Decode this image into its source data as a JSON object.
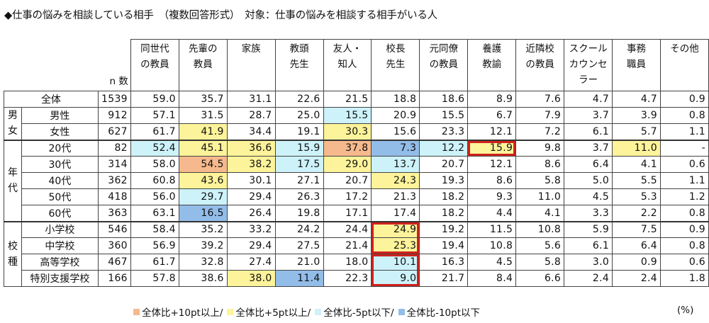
{
  "title": "◆仕事の悩みを相談している相手　（複数回答形式）　対象：仕事の悩みを相談する相手がいる人",
  "n_label": "n 数",
  "columns": [
    "同世代\nの教員",
    "先輩の\n教員",
    "家族",
    "教頭\n先生",
    "友人・\n知人",
    "校長\n先生",
    "元同僚\nの教員",
    "養護\n教諭",
    "近隣校\nの教員",
    "スクール\nカウンセ\nラー",
    "事務\n職員",
    "その他"
  ],
  "groups": [
    {
      "label": "",
      "rows": [
        {
          "label": "全体",
          "n": "1539",
          "values": [
            "59.0",
            "35.7",
            "31.1",
            "22.6",
            "21.5",
            "18.8",
            "18.6",
            "8.9",
            "7.6",
            "4.7",
            "4.7",
            "0.9"
          ],
          "colors": [
            "",
            "",
            "",
            "",
            "",
            "",
            "",
            "",
            "",
            "",
            "",
            ""
          ]
        }
      ]
    },
    {
      "label": "男\n女",
      "rows": [
        {
          "label": "男性",
          "n": "912",
          "values": [
            "57.1",
            "31.5",
            "28.7",
            "25.0",
            "15.5",
            "20.9",
            "15.5",
            "6.7",
            "7.9",
            "3.7",
            "3.9",
            "0.8"
          ],
          "colors": [
            "",
            "",
            "",
            "",
            "lb",
            "",
            "",
            "",
            "",
            "",
            "",
            ""
          ]
        },
        {
          "label": "女性",
          "n": "627",
          "values": [
            "61.7",
            "41.9",
            "34.4",
            "19.1",
            "30.3",
            "15.6",
            "23.3",
            "12.1",
            "7.2",
            "6.1",
            "5.7",
            "1.1"
          ],
          "colors": [
            "",
            "y",
            "",
            "",
            "y",
            "",
            "",
            "",
            "",
            "",
            "",
            ""
          ]
        }
      ]
    },
    {
      "label": "年\n代",
      "rows": [
        {
          "label": "20代",
          "n": "82",
          "values": [
            "52.4",
            "45.1",
            "36.6",
            "15.9",
            "37.8",
            "7.3",
            "12.2",
            "15.9",
            "9.8",
            "3.7",
            "11.0",
            "-"
          ],
          "colors": [
            "lb",
            "y",
            "y",
            "lb",
            "o",
            "b",
            "lb",
            "y",
            "",
            "",
            "y",
            ""
          ]
        },
        {
          "label": "30代",
          "n": "314",
          "values": [
            "58.0",
            "54.5",
            "38.2",
            "17.5",
            "29.0",
            "13.7",
            "20.7",
            "12.1",
            "8.6",
            "6.4",
            "4.1",
            "0.6"
          ],
          "colors": [
            "",
            "o",
            "y",
            "lb",
            "y",
            "lb",
            "",
            "",
            "",
            "",
            "",
            ""
          ]
        },
        {
          "label": "40代",
          "n": "362",
          "values": [
            "60.8",
            "43.6",
            "30.1",
            "27.1",
            "20.7",
            "24.3",
            "19.3",
            "8.6",
            "5.8",
            "5.0",
            "5.5",
            "1.1"
          ],
          "colors": [
            "",
            "y",
            "",
            "",
            "",
            "y",
            "",
            "",
            "",
            "",
            "",
            ""
          ]
        },
        {
          "label": "50代",
          "n": "418",
          "values": [
            "56.0",
            "29.7",
            "29.4",
            "26.3",
            "17.2",
            "21.3",
            "18.2",
            "9.3",
            "11.0",
            "4.5",
            "5.3",
            "1.2"
          ],
          "colors": [
            "",
            "lb",
            "",
            "",
            "",
            "",
            "",
            "",
            "",
            "",
            "",
            ""
          ]
        },
        {
          "label": "60代",
          "n": "363",
          "values": [
            "63.1",
            "16.5",
            "26.4",
            "19.8",
            "17.1",
            "17.4",
            "18.2",
            "4.4",
            "4.1",
            "3.3",
            "2.2",
            "0.8"
          ],
          "colors": [
            "",
            "b",
            "",
            "",
            "",
            "",
            "",
            "",
            "",
            "",
            "",
            ""
          ]
        }
      ]
    },
    {
      "label": "校\n種",
      "rows": [
        {
          "label": "小学校",
          "n": "546",
          "values": [
            "58.4",
            "35.2",
            "33.2",
            "24.2",
            "24.4",
            "24.9",
            "19.2",
            "11.5",
            "10.8",
            "5.9",
            "7.5",
            "0.9"
          ],
          "colors": [
            "",
            "",
            "",
            "",
            "",
            "y",
            "",
            "",
            "",
            "",
            "",
            ""
          ]
        },
        {
          "label": "中学校",
          "n": "360",
          "values": [
            "56.9",
            "39.2",
            "29.4",
            "27.5",
            "21.4",
            "25.3",
            "19.4",
            "10.8",
            "5.6",
            "6.1",
            "6.4",
            "0.8"
          ],
          "colors": [
            "",
            "",
            "",
            "",
            "",
            "y",
            "",
            "",
            "",
            "",
            "",
            ""
          ]
        },
        {
          "label": "高等学校",
          "n": "467",
          "values": [
            "61.7",
            "32.8",
            "27.4",
            "21.0",
            "18.0",
            "10.1",
            "16.3",
            "4.5",
            "5.8",
            "3.0",
            "0.9",
            "0.6"
          ],
          "colors": [
            "",
            "",
            "",
            "",
            "",
            "lb",
            "",
            "",
            "",
            "",
            "",
            ""
          ]
        },
        {
          "label": "特別支援学校",
          "n": "166",
          "values": [
            "57.8",
            "38.6",
            "38.0",
            "11.4",
            "22.3",
            "9.0",
            "21.7",
            "8.4",
            "6.6",
            "2.4",
            "2.4",
            "1.8"
          ],
          "colors": [
            "",
            "",
            "y",
            "b",
            "",
            "lb",
            "",
            "",
            "",
            "",
            "",
            ""
          ]
        }
      ]
    }
  ],
  "highlights": [
    {
      "row": "20代",
      "column": "養護教諭"
    },
    {
      "rows": [
        "小学校",
        "中学校"
      ],
      "column": "校長先生"
    },
    {
      "rows": [
        "高等学校",
        "特別支援学校"
      ],
      "column": "校長先生"
    }
  ],
  "legend": [
    {
      "label": "全体比+10pt以上/",
      "color": "#f6b98d"
    },
    {
      "label": "全体比+5pt以上/",
      "color": "#fdf39a"
    },
    {
      "label": "全体比-5pt以下/",
      "color": "#cdf2fa"
    },
    {
      "label": "全体比-10pt以下",
      "color": "#93bde9"
    }
  ],
  "unit": "(%)",
  "colors": {
    "o": "#f6b98d",
    "y": "#fdf39a",
    "lb": "#cdf2fa",
    "b": "#93bde9",
    "highlight": "#d0211c"
  }
}
